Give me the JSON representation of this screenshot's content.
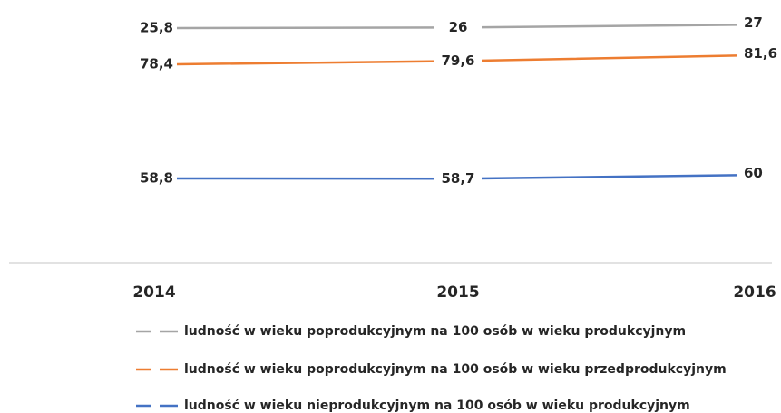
{
  "chart_data": {
    "type": "line",
    "categories": [
      "2014",
      "2015",
      "2016"
    ],
    "series": [
      {
        "name": "ludność w wieku poprodukcyjnym na 100 osób w wieku produkcyjnym",
        "color": "#a5a5a5",
        "values": [
          25.8,
          26,
          27
        ],
        "value_labels": [
          "25,8",
          "26",
          "27"
        ]
      },
      {
        "name": "ludność w wieku poprodukcyjnym na 100 osób w wieku przedprodukcyjnym",
        "color": "#ed7d31",
        "values": [
          78.4,
          79.6,
          81.6
        ],
        "value_labels": [
          "78,4",
          "79,6",
          "81,6"
        ]
      },
      {
        "name": "ludność w wieku nieprodukcyjnym na 100 osób w wieku produkcyjnym",
        "color": "#4472c4",
        "values": [
          58.8,
          58.7,
          60
        ],
        "value_labels": [
          "58,8",
          "58,7",
          "60"
        ]
      }
    ],
    "legend": "bottom"
  }
}
